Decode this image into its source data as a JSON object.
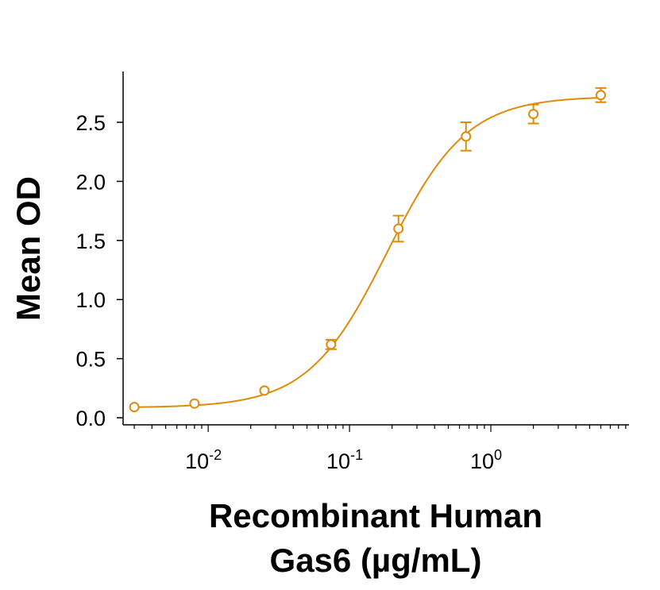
{
  "chart_data": {
    "type": "scatter",
    "xlabel": [
      "Recombinant Human",
      "Gas6 (µg/mL)"
    ],
    "ylabel": "Mean OD",
    "x_scale": "log",
    "xlim": [
      0.0025,
      9.5
    ],
    "ylim": [
      -0.06,
      2.93
    ],
    "x_ticks": [
      {
        "value": 0.01,
        "base": "10",
        "exp": "-2"
      },
      {
        "value": 0.1,
        "base": "10",
        "exp": "-1"
      },
      {
        "value": 1,
        "base": "10",
        "exp": "0"
      }
    ],
    "y_ticks": [
      0.0,
      0.5,
      1.0,
      1.5,
      2.0,
      2.5
    ],
    "y_tick_labels": [
      "0.0",
      "0.5",
      "1.0",
      "1.5",
      "2.0",
      "2.5"
    ],
    "grid": false,
    "legend": "none",
    "series": [
      {
        "x": [
          0.003,
          0.008,
          0.025,
          0.074,
          0.222,
          0.667,
          2.0,
          6.0
        ],
        "y": [
          0.09,
          0.12,
          0.23,
          0.62,
          1.6,
          2.38,
          2.57,
          2.73
        ],
        "error": [
          0.01,
          0.01,
          0.02,
          0.04,
          0.11,
          0.12,
          0.08,
          0.06
        ]
      }
    ],
    "fit_curve": {
      "model": "4PL",
      "bottom": 0.085,
      "top": 2.72,
      "ec50": 0.185,
      "hill": 1.55
    },
    "color": "#E08A0B"
  }
}
